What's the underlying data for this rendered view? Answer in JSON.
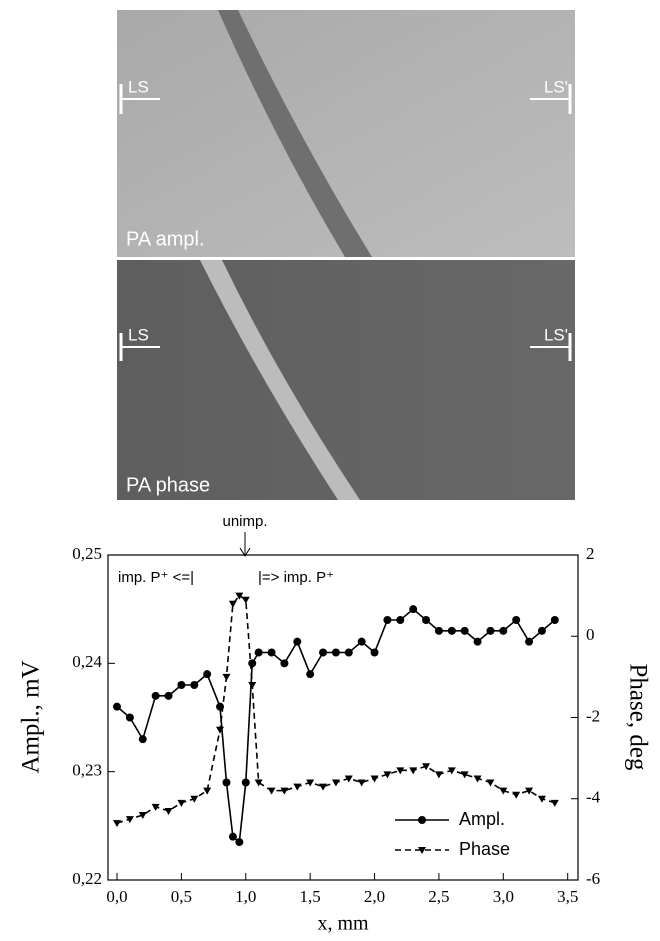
{
  "images": {
    "top": {
      "caption": "PA ampl.",
      "left_marker": "LS",
      "right_marker": "LS'"
    },
    "bottom": {
      "caption": "PA phase",
      "left_marker": "LS",
      "right_marker": "LS'"
    }
  },
  "chart_data": {
    "type": "line",
    "xlabel": "x, mm",
    "ylabel": "Ampl., mV",
    "y2label": "Phase, deg",
    "annotations": [
      "unimp.",
      "imp. P⁺ <=|",
      "|=> imp. P⁺"
    ],
    "x": [
      0,
      0.1,
      0.2,
      0.3,
      0.4,
      0.5,
      0.6,
      0.7,
      0.8,
      0.85,
      0.9,
      0.95,
      1.0,
      1.05,
      1.1,
      1.2,
      1.3,
      1.4,
      1.5,
      1.6,
      1.7,
      1.8,
      1.9,
      2.0,
      2.1,
      2.2,
      2.3,
      2.4,
      2.5,
      2.6,
      2.7,
      2.8,
      2.9,
      3.0,
      3.1,
      3.2,
      3.3,
      3.4
    ],
    "series": [
      {
        "name": "Ampl.",
        "color": "#000000",
        "marker": "circle",
        "linestyle": "solid",
        "values": [
          0.236,
          0.235,
          0.233,
          0.237,
          0.237,
          0.238,
          0.238,
          0.239,
          0.236,
          0.229,
          0.224,
          0.2235,
          0.229,
          0.24,
          0.241,
          0.241,
          0.24,
          0.242,
          0.239,
          0.241,
          0.241,
          0.241,
          0.242,
          0.241,
          0.244,
          0.244,
          0.245,
          0.244,
          0.243,
          0.243,
          0.243,
          0.242,
          0.243,
          0.243,
          0.244,
          0.242,
          0.243,
          0.244
        ]
      },
      {
        "name": "Phase",
        "color": "#000000",
        "marker": "triangle-down",
        "linestyle": "dashed",
        "axis": "y2",
        "values": [
          -4.6,
          -4.5,
          -4.4,
          -4.2,
          -4.3,
          -4.1,
          -4.0,
          -3.8,
          -2.3,
          -1.0,
          0.8,
          1.0,
          0.9,
          -1.2,
          -3.6,
          -3.8,
          -3.8,
          -3.7,
          -3.6,
          -3.7,
          -3.6,
          -3.5,
          -3.6,
          -3.5,
          -3.4,
          -3.3,
          -3.3,
          -3.2,
          -3.4,
          -3.3,
          -3.4,
          -3.5,
          -3.6,
          -3.8,
          -3.9,
          -3.8,
          -4.0,
          -4.1
        ]
      }
    ],
    "xlim": [
      -0.07,
      3.58
    ],
    "xticks": [
      {
        "value": 0,
        "label": "0,0"
      },
      {
        "value": 0.5,
        "label": "0,5"
      },
      {
        "value": 1.0,
        "label": "1,0"
      },
      {
        "value": 1.5,
        "label": "1,5"
      },
      {
        "value": 2.0,
        "label": "2,0"
      },
      {
        "value": 2.5,
        "label": "2,5"
      },
      {
        "value": 3.0,
        "label": "3,0"
      },
      {
        "value": 3.5,
        "label": "3,5"
      }
    ],
    "ylim": [
      0.22,
      0.25
    ],
    "yticks": [
      {
        "value": 0.22,
        "label": "0,22"
      },
      {
        "value": 0.23,
        "label": "0,23"
      },
      {
        "value": 0.24,
        "label": "0,24"
      },
      {
        "value": 0.25,
        "label": "0,25"
      }
    ],
    "y2lim": [
      -6,
      2
    ],
    "y2ticks": [
      -6,
      -4,
      -2,
      0,
      2
    ],
    "legend": "lower right"
  }
}
